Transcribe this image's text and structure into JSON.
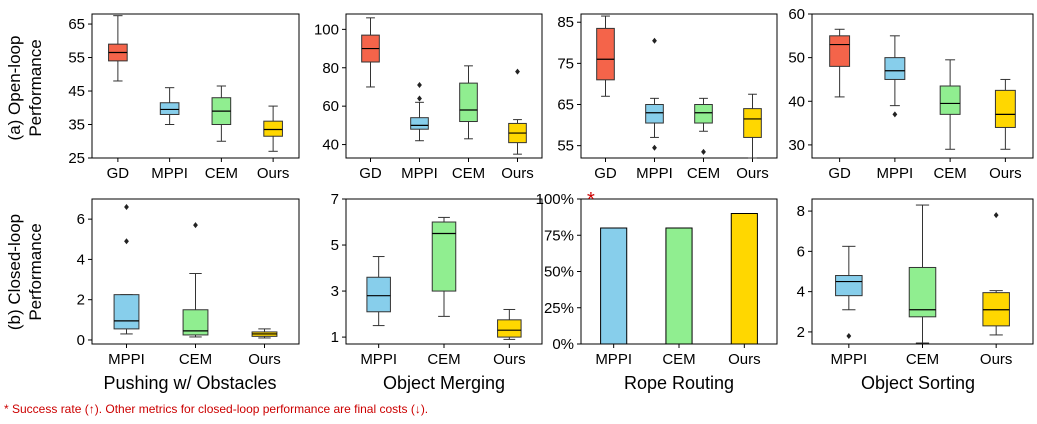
{
  "row_labels": [
    "(a) Open-loop",
    "Performance",
    "(b) Closed-loop",
    "Performance"
  ],
  "task_labels": [
    "Pushing w/ Obstacles",
    "Object Merging",
    "Rope Routing",
    "Object Sorting"
  ],
  "footnote": "* Success rate (↑). Other metrics for closed-loop performance are final costs (↓).",
  "star": "*",
  "colors": {
    "GD": "#f4644a",
    "MPPI": "#87ceeb",
    "CEM": "#90ee90",
    "Ours": "#ffd700",
    "median_open": "#000000",
    "median_closed": "#000000"
  },
  "chart_data": [
    {
      "type": "box",
      "row": "open",
      "task": "Pushing w/ Obstacles",
      "ylim": [
        25,
        68
      ],
      "yticks": [
        25,
        35,
        45,
        55,
        65
      ],
      "categories": [
        "GD",
        "MPPI",
        "CEM",
        "Ours"
      ],
      "boxes": [
        {
          "name": "GD",
          "whislo": 48,
          "q1": 54,
          "med": 56.5,
          "q3": 59,
          "whishi": 67.5,
          "fliers": []
        },
        {
          "name": "MPPI",
          "whislo": 35,
          "q1": 38,
          "med": 39.5,
          "q3": 41.5,
          "whishi": 46,
          "fliers": []
        },
        {
          "name": "CEM",
          "whislo": 30,
          "q1": 35,
          "med": 39,
          "q3": 43,
          "whishi": 46.5,
          "fliers": []
        },
        {
          "name": "Ours",
          "whislo": 27,
          "q1": 31.5,
          "med": 33.5,
          "q3": 36,
          "whishi": 40.5,
          "fliers": []
        }
      ]
    },
    {
      "type": "box",
      "row": "open",
      "task": "Object Merging",
      "ylim": [
        33,
        108
      ],
      "yticks": [
        40,
        60,
        80,
        100
      ],
      "categories": [
        "GD",
        "MPPI",
        "CEM",
        "Ours"
      ],
      "boxes": [
        {
          "name": "GD",
          "whislo": 70,
          "q1": 83,
          "med": 90,
          "q3": 97,
          "whishi": 106,
          "fliers": []
        },
        {
          "name": "MPPI",
          "whislo": 42,
          "q1": 48,
          "med": 50,
          "q3": 54,
          "whishi": 62,
          "fliers": [
            64,
            71
          ]
        },
        {
          "name": "CEM",
          "whislo": 43,
          "q1": 52,
          "med": 58,
          "q3": 72,
          "whishi": 81,
          "fliers": []
        },
        {
          "name": "Ours",
          "whislo": 35,
          "q1": 41,
          "med": 46,
          "q3": 51,
          "whishi": 53,
          "fliers": [
            78
          ]
        }
      ]
    },
    {
      "type": "box",
      "row": "open",
      "task": "Rope Routing",
      "ylim": [
        52,
        87
      ],
      "yticks": [
        55,
        65,
        75,
        85
      ],
      "categories": [
        "GD",
        "MPPI",
        "CEM",
        "Ours"
      ],
      "boxes": [
        {
          "name": "GD",
          "whislo": 67,
          "q1": 71,
          "med": 76,
          "q3": 83.5,
          "whishi": 86.5,
          "fliers": []
        },
        {
          "name": "MPPI",
          "whislo": 57,
          "q1": 60.5,
          "med": 63,
          "q3": 65,
          "whishi": 66.5,
          "fliers": [
            54.5,
            80.5
          ]
        },
        {
          "name": "CEM",
          "whislo": 58.5,
          "q1": 60.5,
          "med": 63,
          "q3": 65,
          "whishi": 66.5,
          "fliers": [
            53.5
          ]
        },
        {
          "name": "Ours",
          "whislo": 52,
          "q1": 57,
          "med": 61.5,
          "q3": 64,
          "whishi": 67.5,
          "fliers": []
        }
      ]
    },
    {
      "type": "box",
      "row": "open",
      "task": "Object Sorting",
      "ylim": [
        27,
        60
      ],
      "yticks": [
        30,
        40,
        50,
        60
      ],
      "categories": [
        "GD",
        "MPPI",
        "CEM",
        "Ours"
      ],
      "boxes": [
        {
          "name": "GD",
          "whislo": 41,
          "q1": 48,
          "med": 53,
          "q3": 55,
          "whishi": 56.5,
          "fliers": []
        },
        {
          "name": "MPPI",
          "whislo": 39,
          "q1": 45,
          "med": 47,
          "q3": 50,
          "whishi": 55,
          "fliers": [
            37
          ]
        },
        {
          "name": "CEM",
          "whislo": 29,
          "q1": 37,
          "med": 39.5,
          "q3": 43.5,
          "whishi": 49.5,
          "fliers": []
        },
        {
          "name": "Ours",
          "whislo": 29,
          "q1": 34,
          "med": 37,
          "q3": 42.5,
          "whishi": 45,
          "fliers": []
        }
      ]
    },
    {
      "type": "box",
      "row": "closed",
      "task": "Pushing w/ Obstacles",
      "ylim": [
        -0.2,
        7
      ],
      "yticks": [
        0,
        2,
        4,
        6
      ],
      "categories": [
        "MPPI",
        "CEM",
        "Ours"
      ],
      "boxes": [
        {
          "name": "MPPI",
          "whislo": 0.3,
          "q1": 0.55,
          "med": 0.95,
          "q3": 2.25,
          "whishi": 2.25,
          "fliers": [
            4.9,
            6.6
          ]
        },
        {
          "name": "CEM",
          "whislo": 0.15,
          "q1": 0.25,
          "med": 0.45,
          "q3": 1.5,
          "whishi": 3.3,
          "fliers": [
            5.7
          ]
        },
        {
          "name": "Ours",
          "whislo": 0.1,
          "q1": 0.18,
          "med": 0.3,
          "q3": 0.4,
          "whishi": 0.55,
          "fliers": []
        }
      ]
    },
    {
      "type": "box",
      "row": "closed",
      "task": "Object Merging",
      "ylim": [
        0.7,
        7
      ],
      "yticks": [
        1,
        3,
        5,
        7
      ],
      "categories": [
        "MPPI",
        "CEM",
        "Ours"
      ],
      "boxes": [
        {
          "name": "MPPI",
          "whislo": 1.5,
          "q1": 2.1,
          "med": 2.8,
          "q3": 3.6,
          "whishi": 4.5,
          "fliers": []
        },
        {
          "name": "CEM",
          "whislo": 1.9,
          "q1": 3.0,
          "med": 5.5,
          "q3": 6.0,
          "whishi": 6.2,
          "fliers": []
        },
        {
          "name": "Ours",
          "whislo": 0.9,
          "q1": 1.0,
          "med": 1.3,
          "q3": 1.75,
          "whishi": 2.2,
          "fliers": []
        }
      ]
    },
    {
      "type": "bar",
      "row": "closed",
      "task": "Rope Routing",
      "ylim": [
        0,
        100
      ],
      "yticks": [
        0,
        25,
        50,
        75,
        100
      ],
      "ytick_labels": [
        "0%",
        "25%",
        "50%",
        "75%",
        "100%"
      ],
      "categories": [
        "MPPI",
        "CEM",
        "Ours"
      ],
      "values": [
        80,
        80,
        90
      ]
    },
    {
      "type": "box",
      "row": "closed",
      "task": "Object Sorting",
      "ylim": [
        1.4,
        8.6
      ],
      "yticks": [
        2,
        4,
        6,
        8
      ],
      "categories": [
        "MPPI",
        "CEM",
        "Ours"
      ],
      "boxes": [
        {
          "name": "MPPI",
          "whislo": 3.1,
          "q1": 3.8,
          "med": 4.5,
          "q3": 4.8,
          "whishi": 6.25,
          "fliers": [
            1.8
          ]
        },
        {
          "name": "CEM",
          "whislo": 1.45,
          "q1": 2.75,
          "med": 3.1,
          "q3": 5.2,
          "whishi": 8.3,
          "fliers": []
        },
        {
          "name": "Ours",
          "whislo": 1.85,
          "q1": 2.3,
          "med": 3.1,
          "q3": 3.95,
          "whishi": 4.05,
          "fliers": [
            7.8
          ]
        }
      ]
    }
  ]
}
